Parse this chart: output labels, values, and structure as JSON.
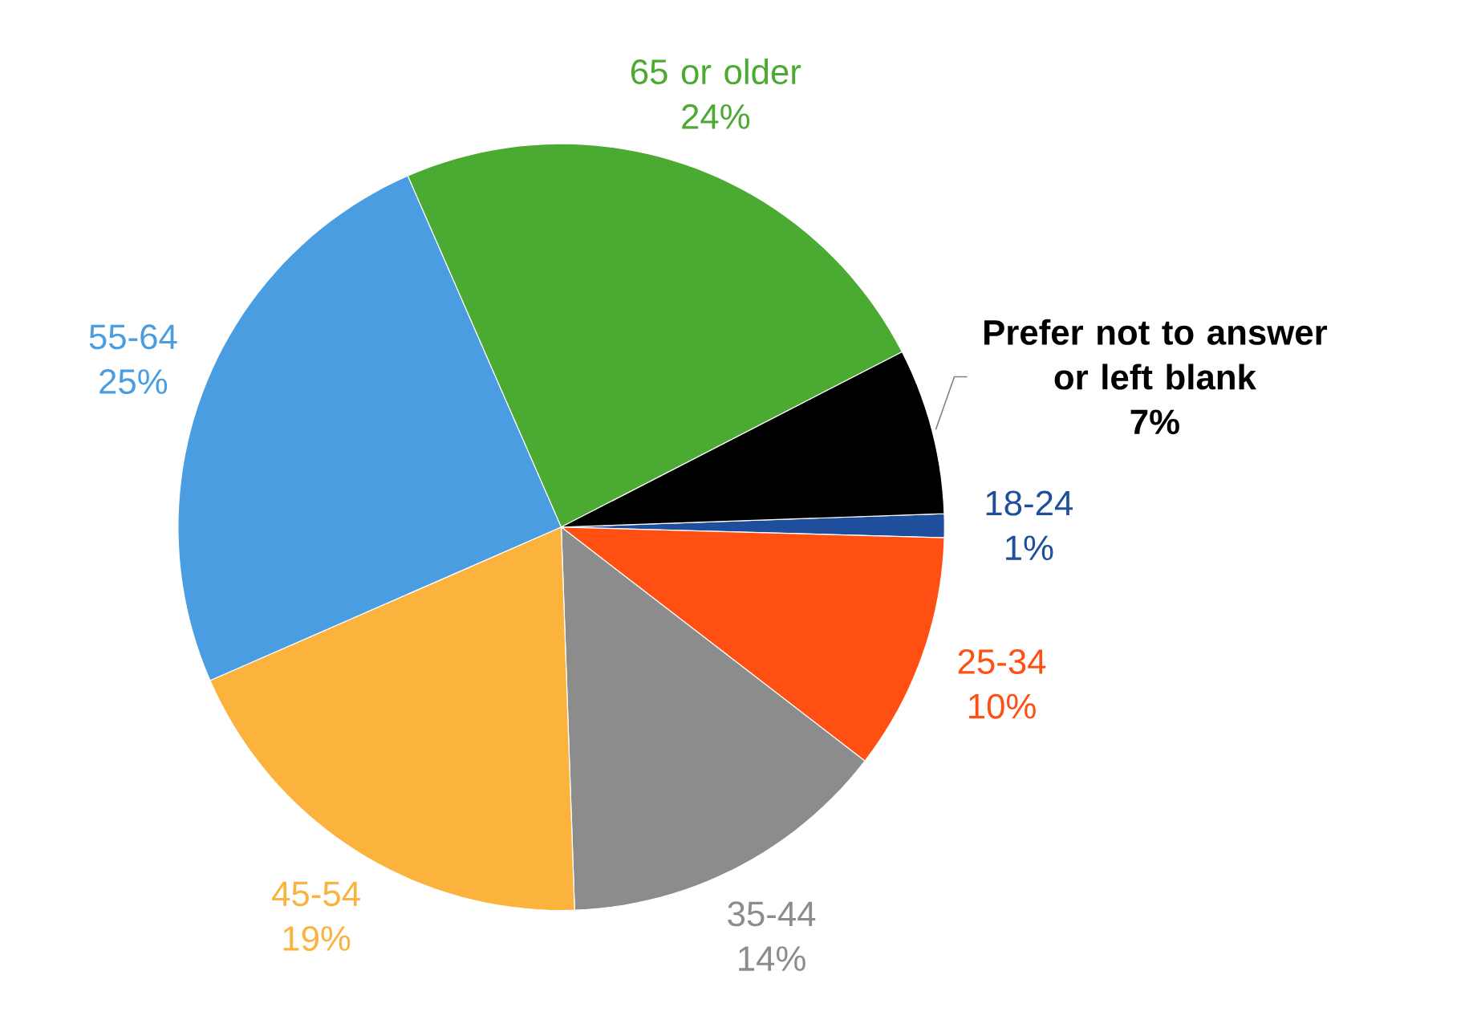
{
  "chart_data": {
    "type": "pie",
    "categories": [
      "18-24",
      "25-34",
      "35-44",
      "45-54",
      "55-64",
      "65 or older",
      "Prefer not to answer or left blank"
    ],
    "values": [
      1,
      10,
      14,
      19,
      25,
      24,
      7
    ],
    "value_labels": [
      "1%",
      "10%",
      "14%",
      "19%",
      "25%",
      "24%",
      "7%"
    ],
    "colors": [
      "#1f4e9c",
      "#ff4f12",
      "#8c8c8c",
      "#fbb33d",
      "#4a9de0",
      "#4aaa32",
      "#000000"
    ]
  }
}
